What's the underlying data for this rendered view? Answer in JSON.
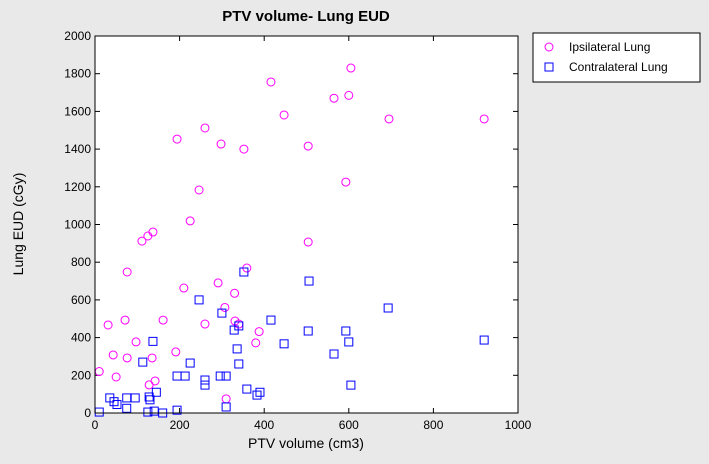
{
  "chart_data": {
    "type": "scatter",
    "title": "PTV volume- Lung EUD",
    "x_label": "PTV volume (cm3)",
    "y_label": "Lung EUD (cGy)",
    "xlim": [
      0,
      1000
    ],
    "xticks": [
      0,
      200,
      400,
      600,
      800,
      1000
    ],
    "ylim": [
      0,
      2000
    ],
    "yticks": [
      0,
      200,
      400,
      600,
      800,
      1000,
      1200,
      1400,
      1600,
      1800,
      2000
    ],
    "legend": "outside",
    "series": [
      {
        "name": "Ipsilateral Lung",
        "color": "#ff00ff",
        "marker": "circle",
        "x": [
          10,
          31,
          43,
          50,
          71,
          76,
          76,
          97,
          111,
          125,
          137,
          128,
          135,
          142,
          161,
          194,
          191,
          210,
          225,
          246,
          260,
          260,
          298,
          291,
          307,
          310,
          331,
          340,
          352,
          359,
          416,
          447,
          504,
          504,
          565,
          600,
          605,
          593,
          695,
          920,
          380,
          388,
          330
        ],
        "values": [
          220,
          467,
          308,
          191,
          493,
          292,
          748,
          377,
          912,
          939,
          960,
          149,
          292,
          170,
          493,
          1453,
          324,
          663,
          1019,
          1183,
          1512,
          472,
          1427,
          690,
          560,
          75,
          488,
          472,
          1400,
          769,
          1756,
          1581,
          1416,
          907,
          1670,
          1685,
          1830,
          1225,
          1560,
          1560,
          372,
          432,
          635
        ]
      },
      {
        "name": "Contralateral Lung",
        "color": "#0000ff",
        "marker": "square",
        "x": [
          10,
          35,
          45,
          52,
          75,
          75,
          95,
          113,
          128,
          130,
          137,
          125,
          140,
          145,
          160,
          194,
          194,
          213,
          225,
          246,
          260,
          260,
          296,
          300,
          310,
          310,
          329,
          336,
          340,
          340,
          352,
          359,
          383,
          390,
          416,
          447,
          504,
          506,
          565,
          593,
          600,
          605,
          693,
          920
        ],
        "values": [
          5,
          80,
          60,
          45,
          80,
          25,
          80,
          270,
          85,
          70,
          380,
          5,
          10,
          110,
          0,
          196,
          15,
          196,
          265,
          600,
          175,
          148,
          196,
          530,
          196,
          32,
          440,
          340,
          462,
          260,
          748,
          127,
          95,
          110,
          493,
          367,
          435,
          700,
          313,
          435,
          377,
          148,
          557,
          387
        ]
      }
    ]
  }
}
